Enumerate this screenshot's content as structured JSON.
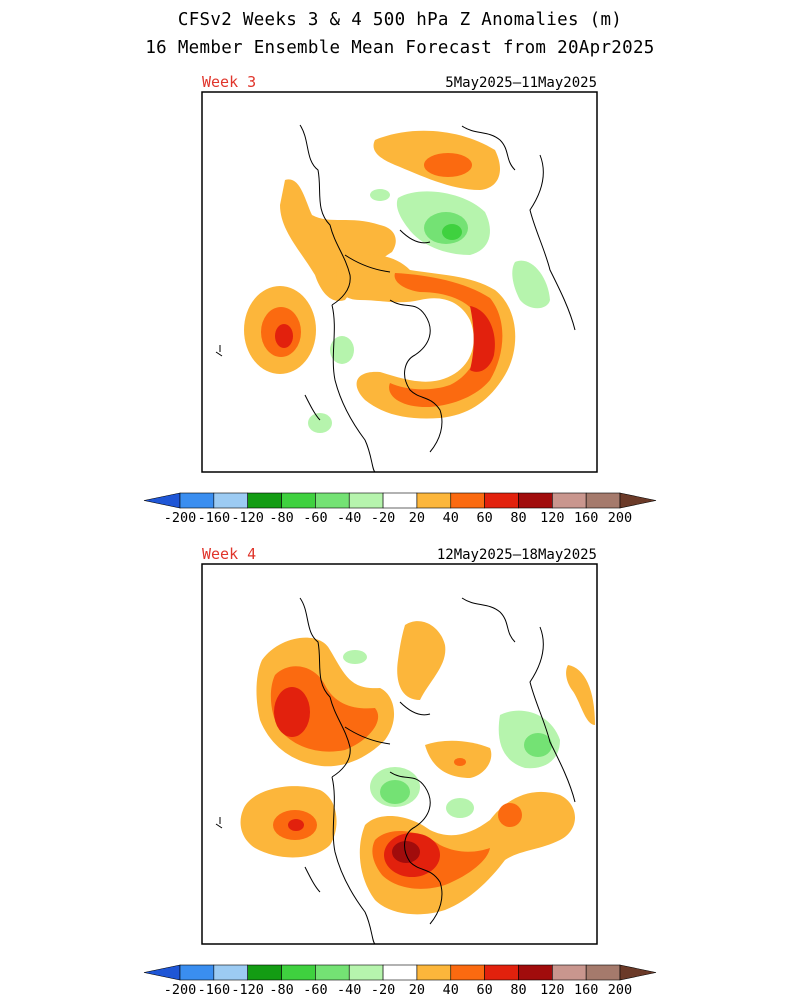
{
  "header": {
    "title": "CFSv2 Weeks 3 & 4 500 hPa Z Anomalies (m)",
    "subtitle": "16 Member Ensemble Mean Forecast from 20Apr2025"
  },
  "panels": [
    {
      "week_label": "Week 3",
      "date_range": "5May2025–11May2025"
    },
    {
      "week_label": "Week 4",
      "date_range": "12May2025–18May2025"
    }
  ],
  "colorbar": {
    "labels": [
      "-200",
      "-160",
      "-120",
      "-80",
      "-60",
      "-40",
      "-20",
      "20",
      "40",
      "60",
      "80",
      "120",
      "160",
      "200"
    ],
    "colors": {
      "neg_below_200": "#1f56d6",
      "neg_200_160": "#3a8ef0",
      "neg_160_120": "#9ccbf3",
      "neg_120_80": "#139c13",
      "neg_80_60": "#3fd13f",
      "neg_60_40": "#74e274",
      "neg_40_20": "#b6f4ad",
      "neutral": "#ffffff",
      "pos_20_40": "#fcb63b",
      "pos_40_60": "#fb6a10",
      "pos_60_80": "#e2210d",
      "pos_80_120": "#a10c0c",
      "pos_120_160": "#c9968e",
      "pos_160_200": "#a57a6c",
      "pos_above_200": "#6b3a28"
    }
  }
}
